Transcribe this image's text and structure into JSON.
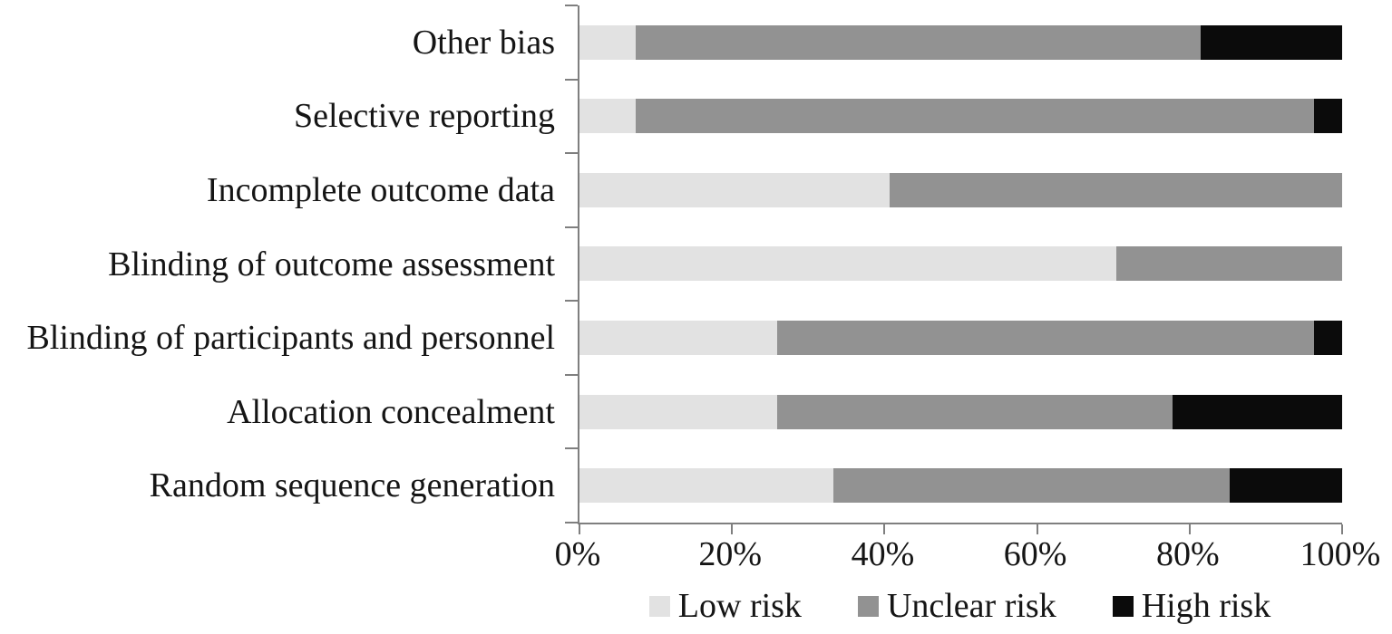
{
  "chart_data": {
    "type": "bar",
    "orientation": "horizontal",
    "stacked": true,
    "unit": "percent",
    "title": "",
    "xlabel": "",
    "ylabel": "",
    "grid": false,
    "axis_color": "#7f7f7f",
    "categories": [
      "Other bias",
      "Selective reporting",
      "Incomplete outcome data",
      "Blinding of outcome assessment",
      "Blinding of participants and personnel",
      "Allocation concealment",
      "Random sequence generation"
    ],
    "series": [
      {
        "name": "Low risk",
        "color": "#e2e2e2",
        "values": [
          7.4,
          7.4,
          40.7,
          70.4,
          25.9,
          25.9,
          33.3
        ]
      },
      {
        "name": "Unclear risk",
        "color": "#929292",
        "values": [
          74.1,
          88.9,
          59.3,
          29.6,
          70.4,
          51.9,
          51.9
        ]
      },
      {
        "name": "High risk",
        "color": "#0b0b0b",
        "values": [
          18.5,
          3.7,
          0,
          0,
          3.7,
          22.2,
          14.8
        ]
      }
    ],
    "x_axis": {
      "range": [
        0,
        100
      ],
      "tick_labels": [
        "0%",
        "20%",
        "40%",
        "60%",
        "80%",
        "100%"
      ]
    },
    "legend": {
      "position": "bottom",
      "entries": [
        "Low risk",
        "Unclear risk",
        "High risk"
      ]
    }
  }
}
